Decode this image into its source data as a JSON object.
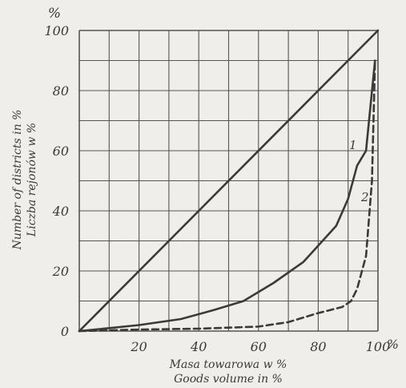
{
  "chart_data": {
    "type": "line",
    "y_unit_label": "%",
    "x_unit_label": "%",
    "xlabel_lines": [
      "Masa towarowa w %",
      "Goods volume in %"
    ],
    "ylabel_lines": [
      "Number of districts in %",
      "Liczba rejonów w %"
    ],
    "xlim": [
      0,
      100
    ],
    "ylim": [
      0,
      100
    ],
    "x_ticks": [
      20,
      40,
      60,
      80,
      100
    ],
    "x_tick_labels": [
      "20",
      "40",
      "60",
      "80",
      "100"
    ],
    "y_ticks": [
      0,
      20,
      40,
      60,
      80,
      100
    ],
    "y_tick_labels": [
      "0",
      "20",
      "40",
      "60",
      "80",
      "100"
    ],
    "grid": true,
    "series": [
      {
        "name": "diagonal",
        "style": "solid",
        "x": [
          0,
          100
        ],
        "y": [
          0,
          100
        ]
      },
      {
        "name": "1",
        "style": "solid",
        "x": [
          0,
          10,
          20,
          34,
          45,
          55,
          65,
          75,
          86,
          90,
          93,
          96,
          99
        ],
        "y": [
          0,
          1,
          2,
          4,
          7,
          10,
          16,
          23,
          35,
          44,
          55,
          60,
          90
        ]
      },
      {
        "name": "2",
        "style": "dashed",
        "x": [
          0,
          20,
          40,
          60,
          70,
          80,
          88,
          91,
          93,
          96,
          98,
          99
        ],
        "y": [
          0,
          0.5,
          0.8,
          1.5,
          3,
          6,
          8,
          10,
          14,
          25,
          50,
          90
        ]
      }
    ]
  },
  "colors": {
    "ink": "#3a3a3a",
    "grid": "#555555",
    "background": "#efeeea"
  }
}
